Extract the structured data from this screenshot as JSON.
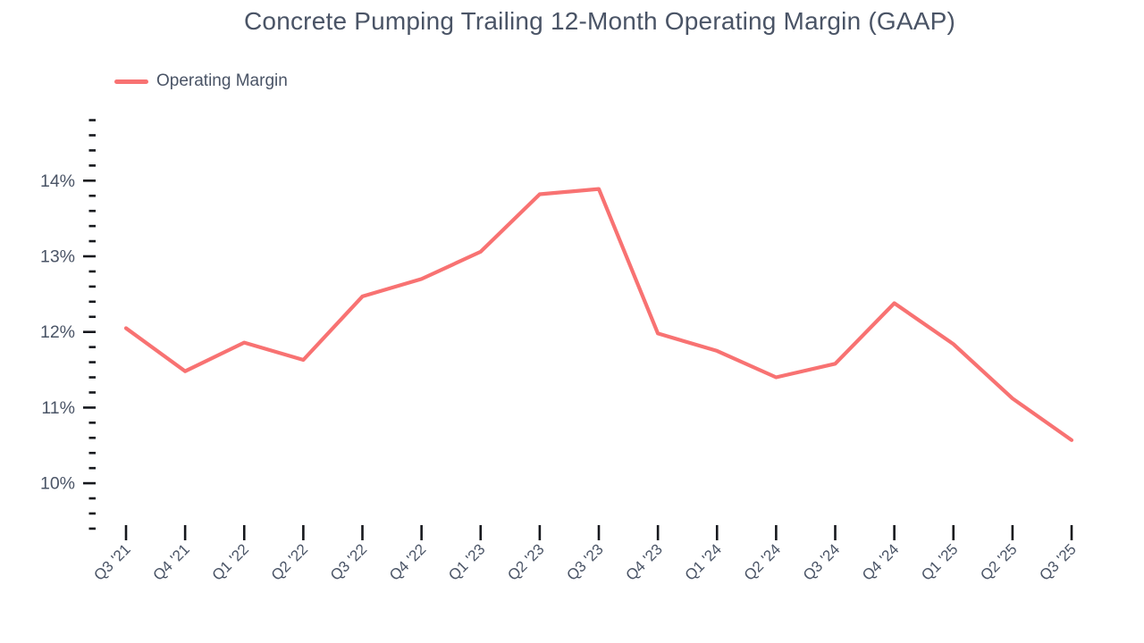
{
  "chart_data": {
    "type": "line",
    "title": "Concrete Pumping Trailing 12-Month Operating Margin (GAAP)",
    "categories": [
      "Q3 '21",
      "Q4 '21",
      "Q1 '22",
      "Q2 '22",
      "Q3 '22",
      "Q4 '22",
      "Q1 '23",
      "Q2 '23",
      "Q3 '23",
      "Q4 '23",
      "Q1 '24",
      "Q2 '24",
      "Q3 '24",
      "Q4 '24",
      "Q1 '25",
      "Q2 '25",
      "Q3 '25"
    ],
    "series": [
      {
        "name": "Operating Margin",
        "values": [
          12.05,
          11.48,
          11.86,
          11.63,
          12.47,
          12.7,
          13.06,
          13.82,
          13.89,
          11.98,
          11.75,
          11.4,
          11.58,
          12.38,
          11.84,
          11.12,
          10.57
        ]
      }
    ],
    "xlabel": "",
    "ylabel": "",
    "y_axis_labels": [
      "10%",
      "11%",
      "12%",
      "13%",
      "14%"
    ],
    "ylim": [
      9.4,
      14.8
    ],
    "y_major_step": 1.0,
    "y_minor_step": 0.2,
    "unit": "%",
    "grid": false,
    "legend_position": "top-left",
    "line_color": "#F87272",
    "text_color": "#4A5466",
    "tick_color": "#16181D"
  }
}
